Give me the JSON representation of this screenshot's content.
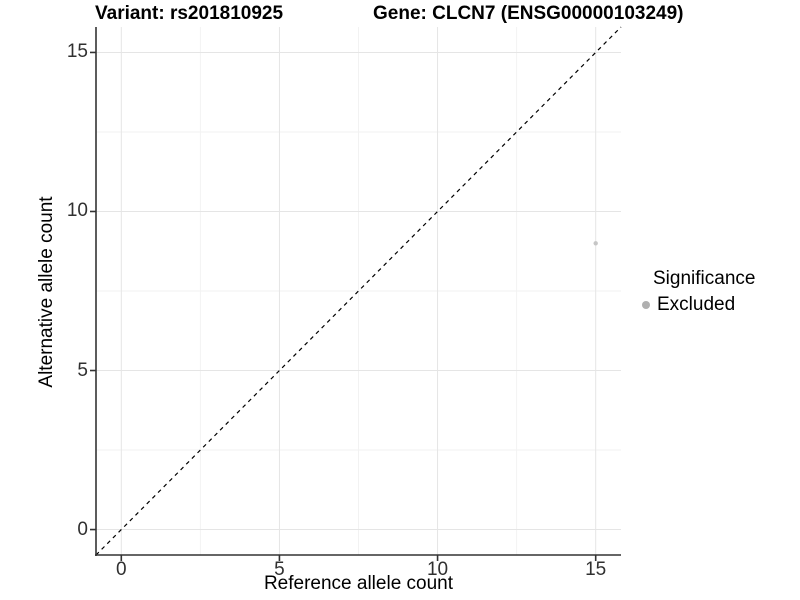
{
  "chart_data": {
    "type": "scatter",
    "title_left": "Variant: rs201810925",
    "title_right": "Gene: CLCN7 (ENSG00000103249)",
    "xlabel": "Reference allele count",
    "ylabel": "Alternative allele count",
    "xlim": [
      -0.8,
      15.8
    ],
    "ylim": [
      -0.8,
      15.8
    ],
    "xticks": [
      0,
      5,
      10,
      15
    ],
    "yticks": [
      0,
      5,
      10,
      15
    ],
    "grid": true,
    "series": [
      {
        "name": "Excluded",
        "color": "#c6c6c6",
        "point_radius": 2.2,
        "points": [
          {
            "x": 15,
            "y": 9
          }
        ]
      }
    ],
    "reference_line": {
      "kind": "identity",
      "style": "dashed",
      "color": "#000000"
    },
    "legend": {
      "title": "Significance",
      "position": "right",
      "items": [
        {
          "label": "Excluded",
          "color": "#b0b0b0"
        }
      ]
    },
    "colors": {
      "background": "#ffffff",
      "grid_major": "#e5e5e5",
      "grid_minor": "#f2f2f2",
      "axis": "#333333",
      "tick_text": "#303030"
    }
  }
}
